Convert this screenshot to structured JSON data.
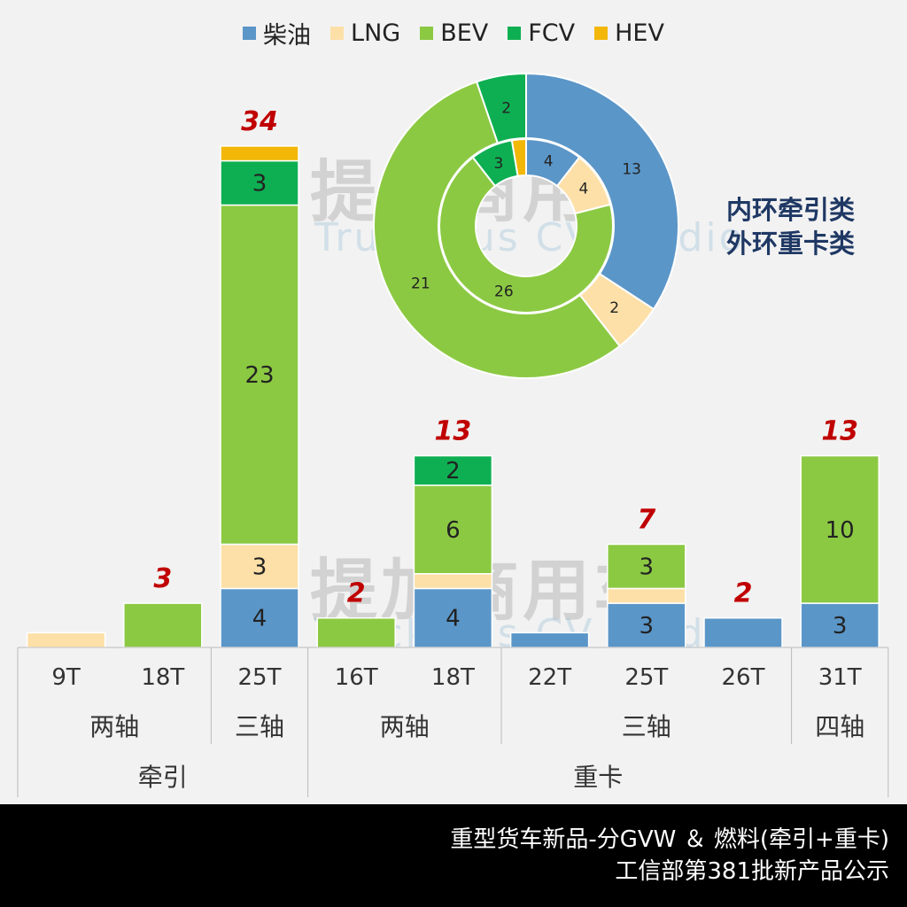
{
  "watermark": {
    "cn": "提加商用车",
    "en": "TruckPlus CV studio"
  },
  "ring_note": [
    "内环牵引类",
    "外环重卡类"
  ],
  "footer": {
    "line1": "重型货车新品-分GVW ＆ 燃料(牵引+重卡)",
    "line2": "工信部第381批新产品公示"
  },
  "chart_data": [
    {
      "type": "bar",
      "stacked": true,
      "categories": [
        "9T",
        "18T",
        "25T",
        "16T",
        "18T",
        "22T",
        "25T",
        "26T",
        "31T"
      ],
      "category_groups": [
        {
          "label": "两轴",
          "span": 2
        },
        {
          "label": "三轴",
          "span": 1
        },
        {
          "label": "两轴",
          "span": 2
        },
        {
          "label": "三轴",
          "span": 3
        },
        {
          "label": "四轴",
          "span": 1
        }
      ],
      "top_groups": [
        {
          "label": "牵引",
          "span": 3
        },
        {
          "label": "重卡",
          "span": 6
        }
      ],
      "series": [
        {
          "name": "柴油",
          "color": "#5b96c8",
          "values": [
            0,
            0,
            4,
            0,
            4,
            1,
            3,
            2,
            3
          ]
        },
        {
          "name": "LNG",
          "color": "#fde0a8",
          "values": [
            1,
            0,
            3,
            0,
            1,
            0,
            1,
            0,
            0
          ]
        },
        {
          "name": "BEV",
          "color": "#8cc943",
          "values": [
            0,
            3,
            23,
            2,
            6,
            0,
            3,
            0,
            10
          ]
        },
        {
          "name": "FCV",
          "color": "#0eaf52",
          "values": [
            0,
            0,
            3,
            0,
            2,
            0,
            0,
            0,
            0
          ]
        },
        {
          "name": "HEV",
          "color": "#f2b707",
          "values": [
            0,
            0,
            1,
            0,
            0,
            0,
            0,
            0,
            0
          ]
        }
      ],
      "totals": [
        null,
        3,
        34,
        2,
        13,
        null,
        7,
        2,
        13
      ],
      "legend_position": "top"
    },
    {
      "type": "pie",
      "donut": true,
      "inner_ring": {
        "values": [
          4,
          4,
          26,
          3,
          1
        ]
      },
      "outer_ring": {
        "values": [
          13,
          2,
          21,
          2,
          0
        ]
      },
      "labels": [
        "柴油",
        "LNG",
        "BEV",
        "FCV",
        "HEV"
      ]
    }
  ]
}
